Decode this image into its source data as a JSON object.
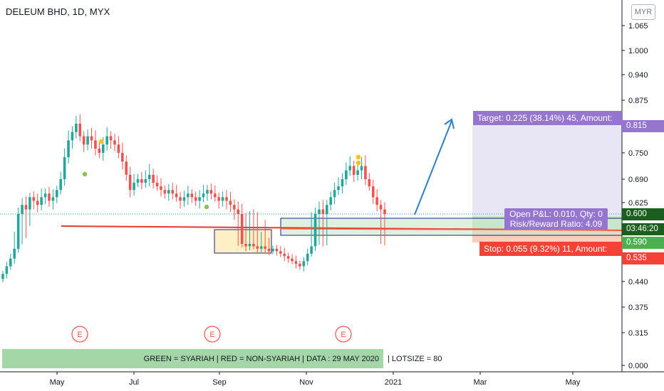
{
  "header": {
    "symbol_line": "DELEUM BHD, 1D, MYX",
    "currency": "MYR"
  },
  "colors": {
    "up": "#26a69a",
    "down": "#ef5350",
    "target_zone": "#e8e6f5",
    "profit_zone": "#c8e6c9",
    "loss_zone": "#ffccbc",
    "support_line": "#e53935",
    "arrow": "#2f7fc1",
    "target_label": "#9575cd",
    "stop_label": "#f44336",
    "pnl_label": "#9575cd",
    "entry_tag": "#4caf50",
    "countdown_tag": "#2e7d32",
    "info_bar_green": "#a5d6a7"
  },
  "price_axis": {
    "ticks": [
      "1.065",
      "1.000",
      "0.940",
      "0.875",
      "0.750",
      "0.690",
      "0.625",
      "0.440",
      "0.375",
      "0.315",
      "0.000"
    ],
    "tags": {
      "target": "0.815",
      "current": "0.600",
      "countdown": "03:46:20",
      "entry": "0.590",
      "stop": "0.535"
    }
  },
  "time_axis": {
    "labels": [
      "May",
      "Jul",
      "Sep",
      "Nov",
      "2021",
      "Mar",
      "May"
    ]
  },
  "position": {
    "target_label": "Target: 0.225 (38.14%) 45, Amount:",
    "stop_label": "Stop: 0.055 (9.32%) 11, Amount:",
    "pnl_line1": "Open P&L: 0.010, Qty: 0",
    "pnl_line2": "Risk/Reward Ratio: 4.09"
  },
  "earnings_marker": "E",
  "info_bar": {
    "green_text": "GREEN = SYARIAH   |   RED = NON-SYARIAH   | DATA : 29 MAY 2020",
    "rest_text": "|   LOTSIZE = 80"
  },
  "chart_data": {
    "type": "candlestick",
    "symbol": "DELEUM BHD",
    "interval": "1D",
    "exchange": "MYX",
    "currency": "MYR",
    "closes": [
      0.47,
      0.5,
      0.53,
      0.57,
      0.6,
      0.62,
      0.61,
      0.64,
      0.63,
      0.62,
      0.64,
      0.65,
      0.63,
      0.64,
      0.66,
      0.69,
      0.74,
      0.78,
      0.8,
      0.82,
      0.79,
      0.77,
      0.79,
      0.78,
      0.76,
      0.75,
      0.77,
      0.79,
      0.78,
      0.77,
      0.75,
      0.73,
      0.7,
      0.66,
      0.68,
      0.69,
      0.68,
      0.69,
      0.7,
      0.68,
      0.67,
      0.66,
      0.65,
      0.66,
      0.65,
      0.64,
      0.63,
      0.64,
      0.65,
      0.64,
      0.63,
      0.64,
      0.65,
      0.66,
      0.65,
      0.64,
      0.63,
      0.64,
      0.63,
      0.62,
      0.61,
      0.6,
      0.59,
      0.58,
      0.59,
      0.58,
      0.57,
      0.58,
      0.57,
      0.56,
      0.57,
      0.56,
      0.55,
      0.54,
      0.53,
      0.52,
      0.51,
      0.5,
      0.52,
      0.55,
      0.58,
      0.6,
      0.61,
      0.6,
      0.62,
      0.64,
      0.66,
      0.67,
      0.69,
      0.71,
      0.72,
      0.7,
      0.71,
      0.72,
      0.69,
      0.67,
      0.64,
      0.62,
      0.61,
      0.6
    ],
    "ylim": [
      0.0,
      1.08
    ],
    "ticks": [
      0.0,
      0.315,
      0.375,
      0.44,
      0.625,
      0.69,
      0.75,
      0.875,
      0.94,
      1.0,
      1.065
    ],
    "support_line_level": 0.59,
    "position": {
      "entry": 0.59,
      "stop": 0.535,
      "target": 0.815,
      "risk_reward": 4.09
    },
    "consolidation_boxes": [
      {
        "from": "Sep",
        "low": 0.545,
        "high": 0.6
      },
      {
        "from": "Nov",
        "low": 0.585,
        "high": 0.61
      }
    ],
    "x_labels": [
      "May",
      "Jul",
      "Sep",
      "Nov",
      "2021",
      "Mar",
      "May"
    ],
    "grid": false,
    "legend": "none"
  }
}
